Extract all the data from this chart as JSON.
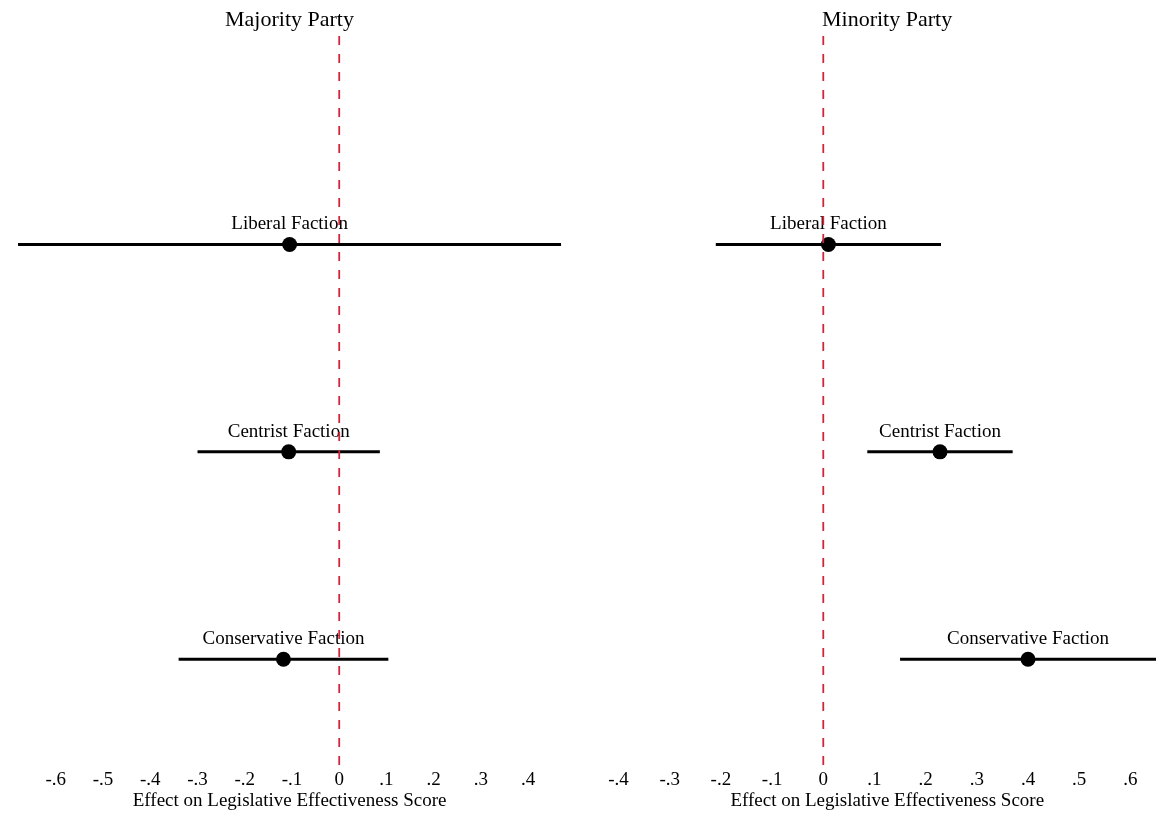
{
  "chart_data": [
    {
      "type": "scatter",
      "orientation": "horizontal",
      "title": "Majority Party",
      "xlabel": "Effect on Legislative Effectiveness Score",
      "categories": [
        "Liberal Faction",
        "Centrist Faction",
        "Conservative Faction"
      ],
      "color": "#000000",
      "values": [
        -0.105,
        -0.107,
        -0.118
      ],
      "errors": [
        0.575,
        0.193,
        0.222
      ],
      "xlim": [
        -0.68,
        0.47
      ],
      "xticks": [
        {
          "value": -0.6,
          "label": "-.6"
        },
        {
          "value": -0.5,
          "label": "-.5"
        },
        {
          "value": -0.4,
          "label": "-.4"
        },
        {
          "value": -0.3,
          "label": "-.3"
        },
        {
          "value": -0.2,
          "label": "-.2"
        },
        {
          "value": -0.1,
          "label": "-.1"
        },
        0,
        {
          "value": 0.1,
          "label": ".1"
        },
        {
          "value": 0.2,
          "label": ".2"
        },
        {
          "value": 0.3,
          "label": ".3"
        },
        {
          "value": 0.4,
          "label": ".4"
        }
      ],
      "ref_lines": [
        {
          "axis": "x",
          "value": 0,
          "color": "#d0253a",
          "line_style": "dashed"
        }
      ],
      "marker": "circle",
      "tick_labels": "x"
    },
    {
      "type": "scatter",
      "orientation": "horizontal",
      "title": "Minority Party",
      "xlabel": "Effect on Legislative Effectiveness Score",
      "categories": [
        "Liberal Faction",
        "Centrist Faction",
        "Conservative Faction"
      ],
      "color": "#000000",
      "values": [
        0.01,
        0.228,
        0.4
      ],
      "errors": [
        0.22,
        0.142,
        0.25
      ],
      "xlim": [
        -0.4,
        0.65
      ],
      "xticks": [
        {
          "value": -0.4,
          "label": "-.4"
        },
        {
          "value": -0.3,
          "label": "-.3"
        },
        {
          "value": -0.2,
          "label": "-.2"
        },
        {
          "value": -0.1,
          "label": "-.1"
        },
        0,
        {
          "value": 0.1,
          "label": ".1"
        },
        {
          "value": 0.2,
          "label": ".2"
        },
        {
          "value": 0.3,
          "label": ".3"
        },
        {
          "value": 0.4,
          "label": ".4"
        },
        {
          "value": 0.5,
          "label": ".5"
        },
        {
          "value": 0.6,
          "label": ".6"
        }
      ],
      "ref_lines": [
        {
          "axis": "x",
          "value": 0,
          "color": "#d0253a",
          "line_style": "dashed"
        }
      ],
      "marker": "circle",
      "tick_labels": "x"
    }
  ]
}
